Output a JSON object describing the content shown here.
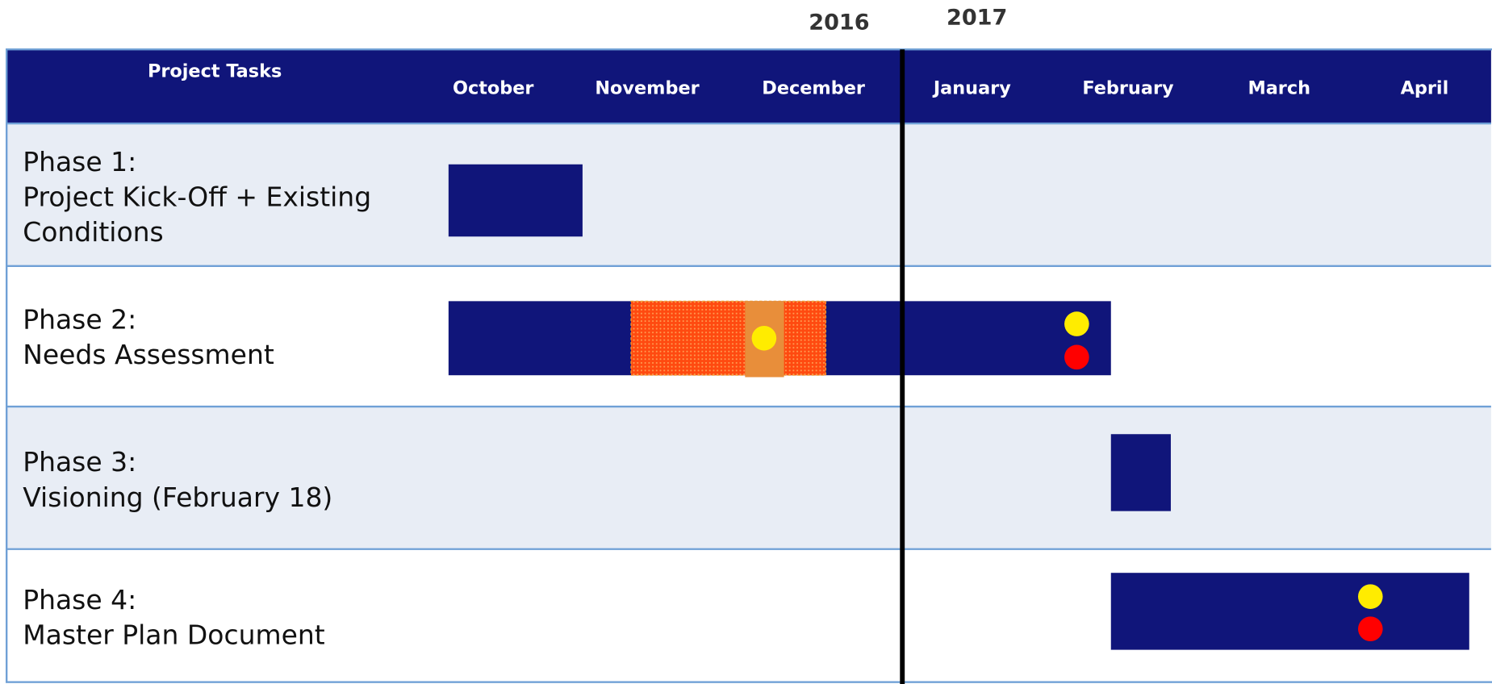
{
  "years": [
    "2016",
    "2017"
  ],
  "header": {
    "title": "Project Tasks",
    "months": [
      "October",
      "November",
      "December",
      "January",
      "February",
      "March",
      "April"
    ]
  },
  "phases": [
    {
      "lines": [
        "Phase 1:",
        "Project Kick-Off + Existing",
        "Conditions"
      ]
    },
    {
      "lines": [
        "Phase 2:",
        "Needs Assessment"
      ]
    },
    {
      "lines": [
        "Phase 3:",
        "Visioning (February 18)"
      ]
    },
    {
      "lines": [
        "Phase 4:",
        "Master Plan Document"
      ]
    }
  ]
}
